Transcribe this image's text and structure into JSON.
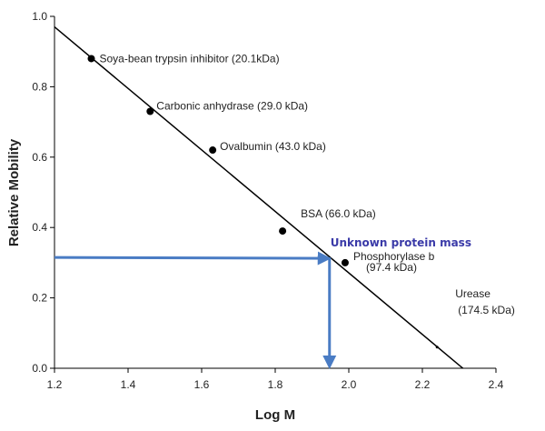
{
  "chart_data": {
    "type": "scatter",
    "title": "",
    "xlabel": "Log M",
    "ylabel": "Relative Mobility",
    "xlim": [
      1.2,
      2.4
    ],
    "ylim": [
      0.0,
      1.0
    ],
    "x_ticks": [
      "1.2",
      "1.4",
      "1.6",
      "1.8",
      "2.0",
      "2.2",
      "2.4"
    ],
    "y_ticks": [
      "0.0",
      "0.2",
      "0.4",
      "0.6",
      "0.8",
      "1.0"
    ],
    "grid": false,
    "points": [
      {
        "x": 1.3,
        "y": 0.88,
        "label": "Soya-bean trypsin inhibitor (20.1kDa)"
      },
      {
        "x": 1.46,
        "y": 0.73,
        "label": "Carbonic anhydrase (29.0 kDa)"
      },
      {
        "x": 1.63,
        "y": 0.62,
        "label": "Ovalbumin (43.0 kDa)"
      },
      {
        "x": 1.82,
        "y": 0.39,
        "label": "BSA (66.0 kDa)"
      },
      {
        "x": 1.99,
        "y": 0.3,
        "label": "Phosphorylase b",
        "label2": "(97.4 kDa)"
      },
      {
        "x": 2.24,
        "y": 0.06,
        "label": "Urease",
        "label2": "(174.5 kDa)"
      }
    ],
    "fit_line": {
      "x": [
        1.2,
        2.31
      ],
      "y": [
        0.97,
        0.0
      ]
    },
    "unknown": {
      "label": "Unknown protein mass",
      "y": 0.315,
      "x": 1.95
    },
    "colors": {
      "points": "#000000",
      "fit": "#000000",
      "arrow": "#4a7cc4",
      "unknown_label": "#3a3aa8"
    }
  }
}
